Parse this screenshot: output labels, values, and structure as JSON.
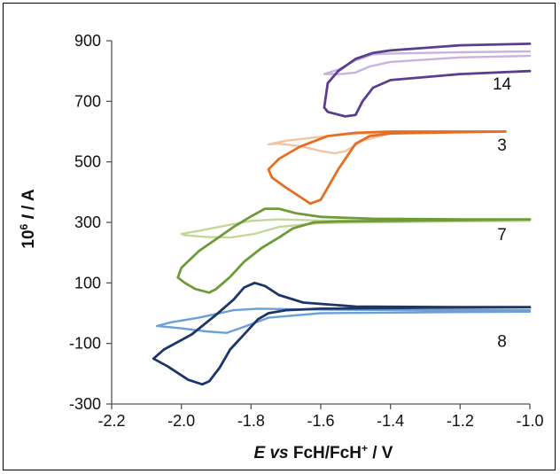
{
  "chart_data": {
    "type": "line",
    "title": "",
    "xlabel": {
      "italic": "E vs",
      "normal": " FcH/FcH",
      "sup": "+",
      "tail": " / V"
    },
    "ylabel": {
      "base": "10",
      "sup": "6",
      "italic": " I",
      "tail": " / A"
    },
    "xlim": [
      -2.2,
      -1.0
    ],
    "ylim": [
      -300,
      900
    ],
    "x_ticks": [
      "-2.2",
      "-2.0",
      "-1.8",
      "-1.6",
      "-1.4",
      "-1.2",
      "-1.0"
    ],
    "y_ticks": [
      "-300",
      "-100",
      "100",
      "300",
      "500",
      "700",
      "900"
    ],
    "grid": false,
    "series_labels": [
      {
        "text": "14",
        "x": -1.08,
        "y": 760
      },
      {
        "text": "3",
        "x": -1.08,
        "y": 557
      },
      {
        "text": "7",
        "x": -1.08,
        "y": 262
      },
      {
        "text": "8",
        "x": -1.08,
        "y": -90
      }
    ],
    "series": [
      {
        "group": "14",
        "color": "#c9b3dd",
        "width": 2.4,
        "points": [
          [
            -1.0,
            850
          ],
          [
            -1.2,
            845
          ],
          [
            -1.4,
            830
          ],
          [
            -1.46,
            815
          ],
          [
            -1.5,
            795
          ],
          [
            -1.54,
            790
          ],
          [
            -1.57,
            790
          ],
          [
            -1.59,
            790
          ],
          [
            -1.55,
            805
          ],
          [
            -1.5,
            835
          ],
          [
            -1.45,
            855
          ],
          [
            -1.4,
            858
          ],
          [
            -1.2,
            862
          ],
          [
            -1.0,
            865
          ]
        ]
      },
      {
        "group": "14",
        "color": "#5b3e8c",
        "width": 2.8,
        "points": [
          [
            -1.0,
            800
          ],
          [
            -1.2,
            790
          ],
          [
            -1.4,
            770
          ],
          [
            -1.45,
            745
          ],
          [
            -1.48,
            700
          ],
          [
            -1.5,
            655
          ],
          [
            -1.53,
            650
          ],
          [
            -1.58,
            665
          ],
          [
            -1.59,
            680
          ],
          [
            -1.58,
            760
          ],
          [
            -1.55,
            800
          ],
          [
            -1.5,
            840
          ],
          [
            -1.45,
            860
          ],
          [
            -1.4,
            868
          ],
          [
            -1.2,
            885
          ],
          [
            -1.0,
            890
          ]
        ]
      },
      {
        "group": "3",
        "color": "#f4c5a0",
        "width": 2.4,
        "points": [
          [
            -1.07,
            600
          ],
          [
            -1.2,
            598
          ],
          [
            -1.4,
            594
          ],
          [
            -1.48,
            570
          ],
          [
            -1.53,
            535
          ],
          [
            -1.56,
            528
          ],
          [
            -1.6,
            536
          ],
          [
            -1.66,
            552
          ],
          [
            -1.72,
            560
          ],
          [
            -1.75,
            558
          ],
          [
            -1.7,
            570
          ],
          [
            -1.62,
            580
          ],
          [
            -1.55,
            590
          ],
          [
            -1.45,
            595
          ],
          [
            -1.3,
            598
          ],
          [
            -1.07,
            600
          ]
        ]
      },
      {
        "group": "3",
        "color": "#e36e24",
        "width": 2.8,
        "points": [
          [
            -1.07,
            600
          ],
          [
            -1.2,
            598
          ],
          [
            -1.4,
            594
          ],
          [
            -1.46,
            585
          ],
          [
            -1.5,
            560
          ],
          [
            -1.55,
            475
          ],
          [
            -1.6,
            375
          ],
          [
            -1.63,
            362
          ],
          [
            -1.66,
            385
          ],
          [
            -1.7,
            415
          ],
          [
            -1.74,
            448
          ],
          [
            -1.75,
            475
          ],
          [
            -1.72,
            510
          ],
          [
            -1.66,
            550
          ],
          [
            -1.58,
            585
          ],
          [
            -1.5,
            596
          ],
          [
            -1.4,
            600
          ],
          [
            -1.2,
            600
          ],
          [
            -1.07,
            600
          ]
        ]
      },
      {
        "group": "7",
        "color": "#c2d79a",
        "width": 2.4,
        "points": [
          [
            -1.0,
            305
          ],
          [
            -1.3,
            302
          ],
          [
            -1.6,
            298
          ],
          [
            -1.72,
            285
          ],
          [
            -1.79,
            262
          ],
          [
            -1.86,
            250
          ],
          [
            -1.93,
            252
          ],
          [
            -1.99,
            258
          ],
          [
            -2.0,
            262
          ],
          [
            -1.95,
            272
          ],
          [
            -1.87,
            290
          ],
          [
            -1.8,
            305
          ],
          [
            -1.72,
            310
          ],
          [
            -1.6,
            306
          ],
          [
            -1.3,
            305
          ],
          [
            -1.0,
            305
          ]
        ]
      },
      {
        "group": "7",
        "color": "#6e9a3a",
        "width": 2.8,
        "points": [
          [
            -1.0,
            310
          ],
          [
            -1.3,
            306
          ],
          [
            -1.55,
            303
          ],
          [
            -1.62,
            300
          ],
          [
            -1.68,
            280
          ],
          [
            -1.72,
            250
          ],
          [
            -1.77,
            215
          ],
          [
            -1.82,
            170
          ],
          [
            -1.86,
            120
          ],
          [
            -1.9,
            80
          ],
          [
            -1.92,
            68
          ],
          [
            -1.96,
            80
          ],
          [
            -1.99,
            100
          ],
          [
            -2.01,
            118
          ],
          [
            -2.0,
            150
          ],
          [
            -1.95,
            205
          ],
          [
            -1.9,
            245
          ],
          [
            -1.85,
            285
          ],
          [
            -1.8,
            320
          ],
          [
            -1.76,
            345
          ],
          [
            -1.72,
            345
          ],
          [
            -1.67,
            330
          ],
          [
            -1.6,
            318
          ],
          [
            -1.45,
            312
          ],
          [
            -1.2,
            310
          ],
          [
            -1.0,
            310
          ]
        ]
      },
      {
        "group": "8",
        "color": "#6aa0d8",
        "width": 2.4,
        "points": [
          [
            -1.0,
            5
          ],
          [
            -1.3,
            3
          ],
          [
            -1.6,
            0
          ],
          [
            -1.75,
            -15
          ],
          [
            -1.82,
            -45
          ],
          [
            -1.87,
            -65
          ],
          [
            -1.93,
            -60
          ],
          [
            -2.0,
            -50
          ],
          [
            -2.07,
            -42
          ],
          [
            -2.03,
            -30
          ],
          [
            -1.95,
            -15
          ],
          [
            -1.85,
            10
          ],
          [
            -1.78,
            15
          ],
          [
            -1.6,
            12
          ],
          [
            -1.3,
            10
          ],
          [
            -1.0,
            10
          ]
        ]
      },
      {
        "group": "8",
        "color": "#1c3668",
        "width": 2.8,
        "points": [
          [
            -1.0,
            20
          ],
          [
            -1.3,
            18
          ],
          [
            -1.6,
            15
          ],
          [
            -1.7,
            10
          ],
          [
            -1.75,
            0
          ],
          [
            -1.78,
            -20
          ],
          [
            -1.82,
            -70
          ],
          [
            -1.86,
            -120
          ],
          [
            -1.89,
            -180
          ],
          [
            -1.92,
            -225
          ],
          [
            -1.94,
            -235
          ],
          [
            -1.98,
            -220
          ],
          [
            -2.04,
            -175
          ],
          [
            -2.08,
            -150
          ],
          [
            -2.05,
            -120
          ],
          [
            -1.97,
            -70
          ],
          [
            -1.9,
            -5
          ],
          [
            -1.85,
            45
          ],
          [
            -1.82,
            85
          ],
          [
            -1.79,
            100
          ],
          [
            -1.76,
            90
          ],
          [
            -1.72,
            60
          ],
          [
            -1.65,
            35
          ],
          [
            -1.5,
            22
          ],
          [
            -1.2,
            20
          ],
          [
            -1.0,
            20
          ]
        ]
      }
    ]
  }
}
